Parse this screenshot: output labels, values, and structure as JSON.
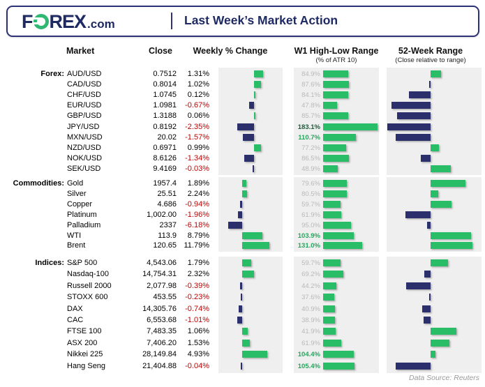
{
  "header": {
    "logo_f": "F",
    "logo_rex": "REX",
    "logo_dotcom": ".com",
    "title": "Last Week’s Market Action"
  },
  "columns": {
    "market": "Market",
    "close": "Close",
    "weekly": "Weekly % Change",
    "w1": "W1 High-Low Range",
    "w1_sub": "(% of ATR 10)",
    "w52": "52-Week Range",
    "w52_sub": "(Close relative to range)"
  },
  "footer": {
    "source": "Data Source: Reuters"
  },
  "colors": {
    "navy_bar": "#2b2f6c",
    "green_bar": "#29bd68",
    "brand_green": "#2eb872",
    "title_navy": "#1e2a63",
    "negative_red": "#c00000",
    "panel_gray": "#efefef",
    "w1_label_gray": "#b9b9b9",
    "w1_label_green": "#21a95b",
    "w1_label_dark_green": "#1d5c38"
  },
  "chart_data": {
    "type": "table",
    "note": "Bar columns: Weekly % Change (diverging bars, green=positive, navy=negative), W1 High-Low Range as % of ATR 10 (green bars with labels), 52-Week Range close position (0=low end, 0.5=middle, 1=high end; green=upper half, navy=lower half)",
    "sections": [
      {
        "label": "Forex:",
        "rows": [
          {
            "market": "AUD/USD",
            "close": "0.7512",
            "weekly_pct": 1.31,
            "weekly_label": "1.31%",
            "w1_pct": 84.9,
            "w1_label": "84.9%",
            "range_pos": 0.62
          },
          {
            "market": "CAD/USD",
            "close": "0.8014",
            "weekly_pct": 1.02,
            "weekly_label": "1.02%",
            "w1_pct": 87.6,
            "w1_label": "87.6%",
            "range_pos": 0.48
          },
          {
            "market": "CHF/USD",
            "close": "1.0745",
            "weekly_pct": 0.12,
            "weekly_label": "0.12%",
            "w1_pct": 84.1,
            "w1_label": "84.1%",
            "range_pos": 0.25
          },
          {
            "market": "EUR/USD",
            "close": "1.0981",
            "weekly_pct": -0.67,
            "weekly_label": "-0.67%",
            "w1_pct": 47.8,
            "w1_label": "47.8%",
            "range_pos": 0.05
          },
          {
            "market": "GBP/USD",
            "close": "1.3188",
            "weekly_pct": 0.06,
            "weekly_label": "0.06%",
            "w1_pct": 85.7,
            "w1_label": "85.7%",
            "range_pos": 0.11
          },
          {
            "market": "JPY/USD",
            "close": "0.8192",
            "weekly_pct": -2.35,
            "weekly_label": "-2.35%",
            "w1_pct": 183.1,
            "w1_label": "183.1%",
            "range_pos": 0.0
          },
          {
            "market": "MXN/USD",
            "close": "20.02",
            "weekly_pct": -1.57,
            "weekly_label": "-1.57%",
            "w1_pct": 110.7,
            "w1_label": "110.7%",
            "range_pos": 0.1
          },
          {
            "market": "NZD/USD",
            "close": "0.6971",
            "weekly_pct": 0.99,
            "weekly_label": "0.99%",
            "w1_pct": 77.2,
            "w1_label": "77.2%",
            "range_pos": 0.6
          },
          {
            "market": "NOK/USD",
            "close": "8.6126",
            "weekly_pct": -1.34,
            "weekly_label": "-1.34%",
            "w1_pct": 86.5,
            "w1_label": "86.5%",
            "range_pos": 0.39
          },
          {
            "market": "SEK/USD",
            "close": "9.4169",
            "weekly_pct": -0.03,
            "weekly_label": "-0.03%",
            "w1_pct": 48.9,
            "w1_label": "48.9%",
            "range_pos": 0.73
          }
        ]
      },
      {
        "label": "Commodities:",
        "rows": [
          {
            "market": "Gold",
            "close": "1957.4",
            "weekly_pct": 1.89,
            "weekly_label": "1.89%",
            "w1_pct": 79.6,
            "w1_label": "79.6%",
            "range_pos": 0.9
          },
          {
            "market": "Silver",
            "close": "25.51",
            "weekly_pct": 2.24,
            "weekly_label": "2.24%",
            "w1_pct": 80.5,
            "w1_label": "80.5%",
            "range_pos": 0.59
          },
          {
            "market": "Copper",
            "close": "4.686",
            "weekly_pct": -0.94,
            "weekly_label": "-0.94%",
            "w1_pct": 59.7,
            "w1_label": "59.7%",
            "range_pos": 0.74
          },
          {
            "market": "Platinum",
            "close": "1,002.00",
            "weekly_pct": -1.96,
            "weekly_label": "-1.96%",
            "w1_pct": 61.9,
            "w1_label": "61.9%",
            "range_pos": 0.21
          },
          {
            "market": "Palladium",
            "close": "2337",
            "weekly_pct": -6.18,
            "weekly_label": "-6.18%",
            "w1_pct": 95.0,
            "w1_label": "95.0%",
            "range_pos": 0.46
          },
          {
            "market": "WTI",
            "close": "113.9",
            "weekly_pct": 8.79,
            "weekly_label": "8.79%",
            "w1_pct": 103.9,
            "w1_label": "103.9%",
            "range_pos": 0.97
          },
          {
            "market": "Brent",
            "close": "120.65",
            "weekly_pct": 11.79,
            "weekly_label": "11.79%",
            "w1_pct": 131.0,
            "w1_label": "131.0%",
            "range_pos": 0.98
          }
        ]
      },
      {
        "label": "Indices:",
        "rows": [
          {
            "market": "S&P 500",
            "close": "4,543.06",
            "weekly_pct": 1.79,
            "weekly_label": "1.79%",
            "w1_pct": 59.7,
            "w1_label": "59.7%",
            "range_pos": 0.7
          },
          {
            "market": "Nasdaq-100",
            "close": "14,754.31",
            "weekly_pct": 2.32,
            "weekly_label": "2.32%",
            "w1_pct": 69.2,
            "w1_label": "69.2%",
            "range_pos": 0.43
          },
          {
            "market": "Russell 2000",
            "close": "2,077.98",
            "weekly_pct": -0.39,
            "weekly_label": "-0.39%",
            "w1_pct": 44.2,
            "w1_label": "44.2%",
            "range_pos": 0.22
          },
          {
            "market": "STOXX 600",
            "close": "453.55",
            "weekly_pct": -0.23,
            "weekly_label": "-0.23%",
            "w1_pct": 37.6,
            "w1_label": "37.6%",
            "range_pos": 0.48
          },
          {
            "market": "DAX",
            "close": "14,305.76",
            "weekly_pct": -0.74,
            "weekly_label": "-0.74%",
            "w1_pct": 40.9,
            "w1_label": "40.9%",
            "range_pos": 0.4
          },
          {
            "market": "CAC",
            "close": "6,553.68",
            "weekly_pct": -1.01,
            "weekly_label": "-1.01%",
            "w1_pct": 38.9,
            "w1_label": "38.9%",
            "range_pos": 0.42
          },
          {
            "market": "FTSE 100",
            "close": "7,483.35",
            "weekly_pct": 1.06,
            "weekly_label": "1.06%",
            "w1_pct": 41.9,
            "w1_label": "41.9%",
            "range_pos": 0.8
          },
          {
            "market": "ASX 200",
            "close": "7,406.20",
            "weekly_pct": 1.53,
            "weekly_label": "1.53%",
            "w1_pct": 61.9,
            "w1_label": "61.9%",
            "range_pos": 0.72
          },
          {
            "market": "Nikkei 225",
            "close": "28,149.84",
            "weekly_pct": 4.93,
            "weekly_label": "4.93%",
            "w1_pct": 104.4,
            "w1_label": "104.4%",
            "range_pos": 0.56
          },
          {
            "market": "Hang Seng",
            "close": "21,404.88",
            "weekly_pct": -0.04,
            "weekly_label": "-0.04%",
            "w1_pct": 105.4,
            "w1_label": "105.4%",
            "range_pos": 0.1
          }
        ]
      }
    ]
  }
}
